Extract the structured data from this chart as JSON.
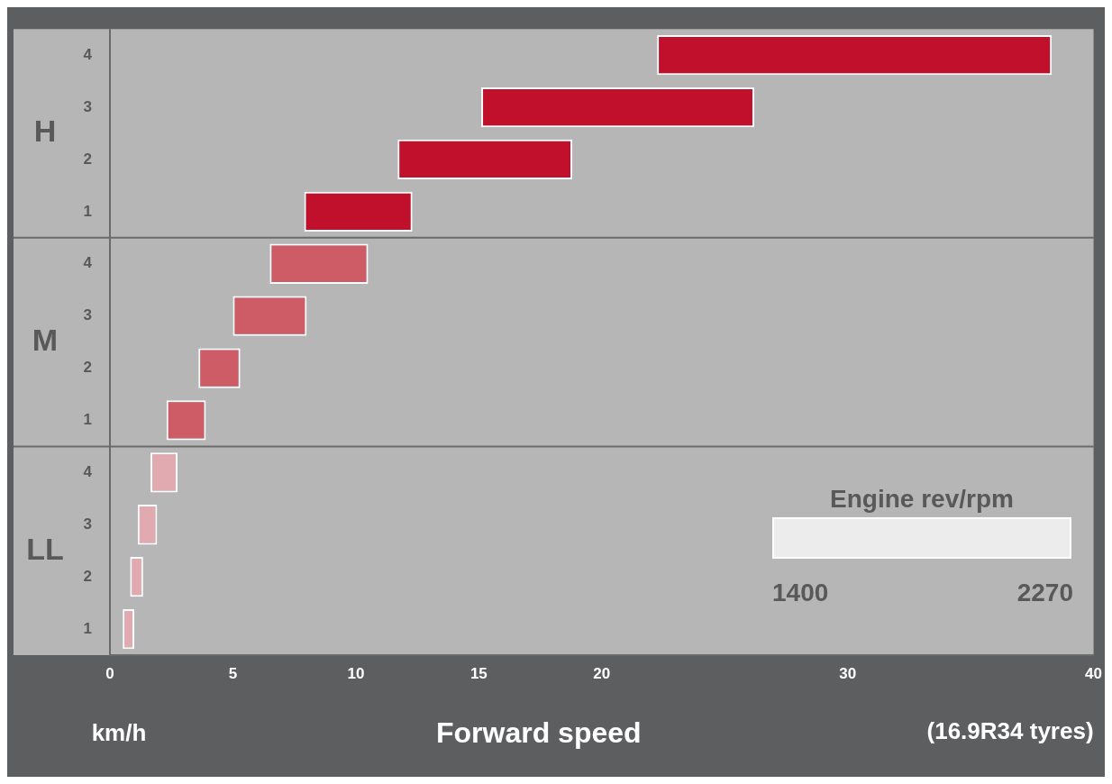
{
  "chart_data": {
    "type": "bar",
    "orientation": "horizontal",
    "xlabel": "Forward speed",
    "categories": [
      "4",
      "3",
      "2",
      "1",
      "4",
      "3",
      "2",
      "1",
      "4",
      "3",
      "2",
      "1"
    ],
    "base": [
      22.25,
      15.1,
      11.7,
      7.9,
      6.5,
      5.0,
      3.6,
      2.3,
      1.65,
      1.13,
      0.82,
      0.52
    ],
    "values": [
      16.05,
      11.1,
      7.1,
      4.4,
      4.0,
      3.0,
      1.7,
      1.6,
      1.1,
      0.79,
      0.53,
      0.47
    ],
    "colors": [
      "#c0102c",
      "#c0102c",
      "#c0102c",
      "#c0102c",
      "#cd5c67",
      "#cd5c67",
      "#cd5c67",
      "#cd5c67",
      "#e1aab0",
      "#e1aab0",
      "#e1aab0",
      "#e1aab0"
    ],
    "xlim": [
      0,
      40
    ],
    "xticks": [
      0,
      5,
      10,
      15,
      20,
      30,
      40
    ],
    "annotations": [
      "km/h",
      "(16.9R34 tyres)",
      "Engine rev/rpm",
      "1400",
      "2270",
      "H",
      "M",
      "LL"
    ],
    "grid": false,
    "legend": false
  }
}
